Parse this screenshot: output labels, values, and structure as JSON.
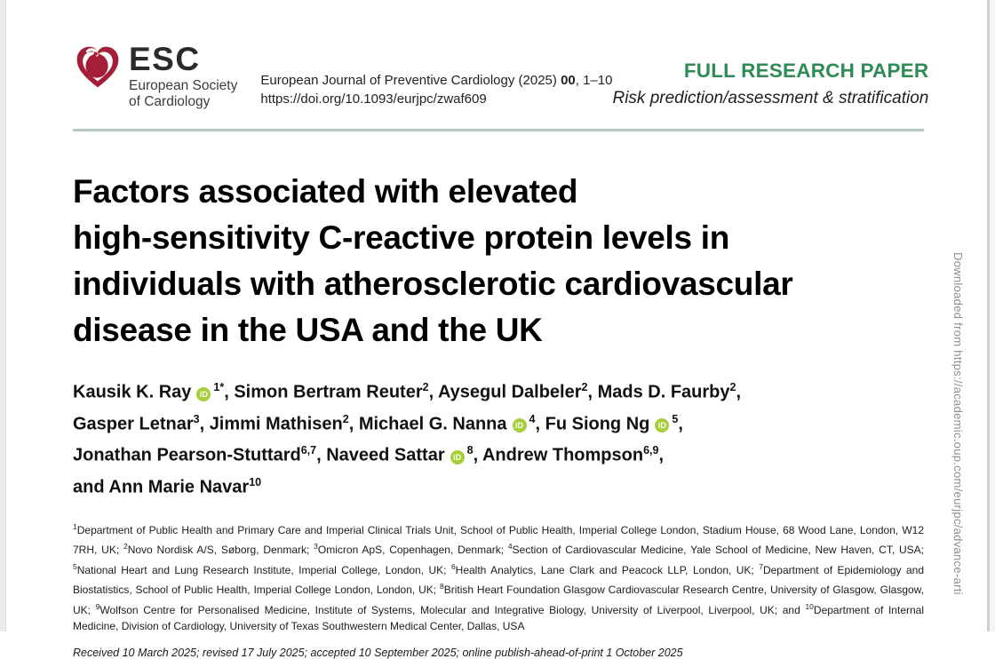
{
  "header": {
    "logo": {
      "acronym": "ESC",
      "society_line1": "European Society",
      "society_line2": "of Cardiology"
    },
    "citation": {
      "journal_prefix": "European Journal of Preventive Cardiology (2025) ",
      "volume": "00",
      "pages_suffix": ", 1–10",
      "doi": "https://doi.org/10.1093/eurjpc/zwaf609"
    },
    "article_type": "FULL RESEARCH PAPER",
    "category": "Risk prediction/assessment & stratification"
  },
  "title_lines": [
    "Factors associated with elevated",
    "high-sensitivity C-reactive protein levels in",
    "individuals with atherosclerotic cardiovascular",
    "disease in the USA and the UK"
  ],
  "authors": {
    "orcid_label": "iD",
    "lines": [
      [
        {
          "name": "Kausik K. Ray",
          "orcid": true,
          "sup": "1*",
          "tail": ", "
        },
        {
          "name": "Simon Bertram Reuter",
          "orcid": false,
          "sup": "2",
          "tail": ", "
        },
        {
          "name": "Aysegul Dalbeler",
          "orcid": false,
          "sup": "2",
          "tail": ", "
        },
        {
          "name": "Mads D. Faurby",
          "orcid": false,
          "sup": "2",
          "tail": ","
        }
      ],
      [
        {
          "name": "Gasper Letnar",
          "orcid": false,
          "sup": "3",
          "tail": ", "
        },
        {
          "name": "Jimmi Mathisen",
          "orcid": false,
          "sup": "2",
          "tail": ", "
        },
        {
          "name": "Michael G. Nanna",
          "orcid": true,
          "sup": "4",
          "tail": ", "
        },
        {
          "name": "Fu Siong Ng",
          "orcid": true,
          "sup": "5",
          "tail": ","
        }
      ],
      [
        {
          "name": "Jonathan Pearson-Stuttard",
          "orcid": false,
          "sup": "6,7",
          "tail": ", "
        },
        {
          "name": "Naveed Sattar",
          "orcid": true,
          "sup": "8",
          "tail": ", "
        },
        {
          "name": "Andrew Thompson",
          "orcid": false,
          "sup": "6,9",
          "tail": ","
        }
      ],
      [
        {
          "name": "and Ann Marie Navar",
          "orcid": false,
          "sup": "10",
          "tail": ""
        }
      ]
    ]
  },
  "affiliations": [
    {
      "sup": "1",
      "text": "Department of Public Health and Primary Care and Imperial Clinical Trials Unit, School of Public Health, Imperial College London, Stadium House, 68 Wood Lane, London, W12 7RH, UK; "
    },
    {
      "sup": "2",
      "text": "Novo Nordisk A/S, Søborg, Denmark; "
    },
    {
      "sup": "3",
      "text": "Omicron ApS, Copenhagen, Denmark; "
    },
    {
      "sup": "4",
      "text": "Section of Cardiovascular Medicine, Yale School of Medicine, New Haven, CT, USA; "
    },
    {
      "sup": "5",
      "text": "National Heart and Lung Research Institute, Imperial College, London, UK; "
    },
    {
      "sup": "6",
      "text": "Health Analytics, Lane Clark and Peacock LLP, London, UK; "
    },
    {
      "sup": "7",
      "text": "Department of Epidemiology and Biostatistics, School of Public Health, Imperial College London, London, UK; "
    },
    {
      "sup": "8",
      "text": "British Heart Foundation Glasgow Cardiovascular Research Centre, University of Glasgow, Glasgow, UK; "
    },
    {
      "sup": "9",
      "text": "Wolfson Centre for Personalised Medicine, Institute of Systems, Molecular and Integrative Biology, University of Liverpool, Liverpool, UK; and "
    },
    {
      "sup": "10",
      "text": "Department of Internal Medicine, Division of Cardiology, University of Texas Southwestern Medical Center, Dallas, USA"
    }
  ],
  "history": "Received 10 March 2025; revised 17 July 2025; accepted 10 September 2025; online publish-ahead-of-print 1 October 2025",
  "watermark": "Downloaded from https://academic.oup.com/eurjpc/advance-arti",
  "colors": {
    "article_type_green": "#2f8b55",
    "heart_red": "#a41e38",
    "orcid_green": "#a6ce39",
    "rule_sage": "#b3c9bb",
    "watermark_gray": "#8e8e8e"
  }
}
